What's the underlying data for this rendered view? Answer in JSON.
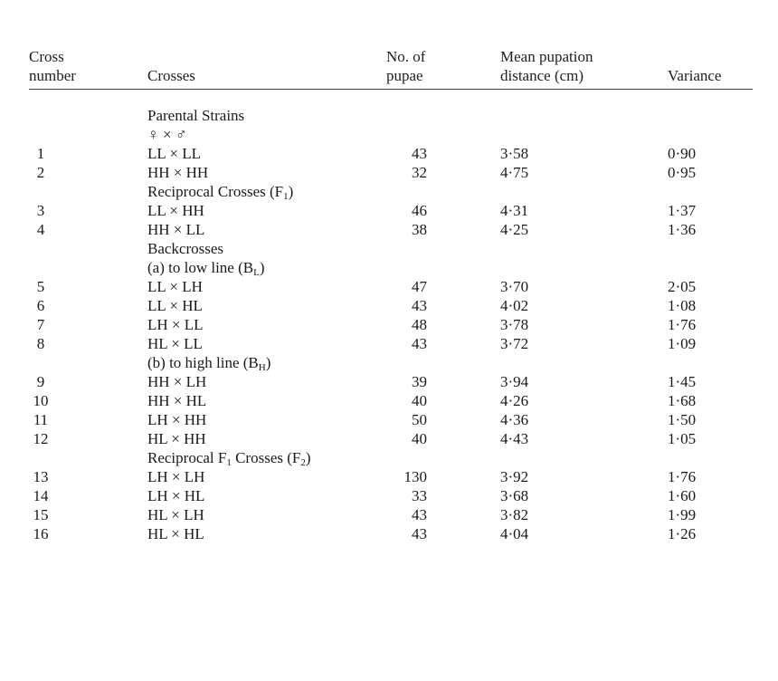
{
  "headers": {
    "cross_number_line1": "Cross",
    "cross_number_line2": "number",
    "crosses": "Crosses",
    "pupae_line1": "No. of",
    "pupae_line2": "pupae",
    "mean_line1": "Mean pupation",
    "mean_line2": "distance (cm)",
    "variance": "Variance"
  },
  "sections": {
    "parental": "Parental Strains",
    "sex_symbols": "♀ × ♂",
    "reciprocal_main": "Reciprocal Crosses (F",
    "reciprocal_sub": "1",
    "reciprocal_end": ")",
    "backcrosses": "Backcrosses",
    "low_main": "(a) to low line (B",
    "low_sub": "L",
    "low_end": ")",
    "high_main": "(b) to high line (B",
    "high_sub": "H",
    "high_end": ")",
    "f1_main": "Reciprocal F",
    "f1_sub": "1",
    "f1_mid": " Crosses (F",
    "f1_sub2": "2",
    "f1_end": ")"
  },
  "rows": [
    {
      "num": "1",
      "cross": "LL × LL",
      "pupae": "43",
      "mean": "3·58",
      "var": "0·90"
    },
    {
      "num": "2",
      "cross": "HH × HH",
      "pupae": "32",
      "mean": "4·75",
      "var": "0·95"
    },
    {
      "num": "3",
      "cross": "LL × HH",
      "pupae": "46",
      "mean": "4·31",
      "var": "1·37"
    },
    {
      "num": "4",
      "cross": "HH × LL",
      "pupae": "38",
      "mean": "4·25",
      "var": "1·36"
    },
    {
      "num": "5",
      "cross": "LL × LH",
      "pupae": "47",
      "mean": "3·70",
      "var": "2·05"
    },
    {
      "num": "6",
      "cross": "LL × HL",
      "pupae": "43",
      "mean": "4·02",
      "var": "1·08"
    },
    {
      "num": "7",
      "cross": "LH × LL",
      "pupae": "48",
      "mean": "3·78",
      "var": "1·76"
    },
    {
      "num": "8",
      "cross": "HL × LL",
      "pupae": "43",
      "mean": "3·72",
      "var": "1·09"
    },
    {
      "num": "9",
      "cross": "HH × LH",
      "pupae": "39",
      "mean": "3·94",
      "var": "1·45"
    },
    {
      "num": "10",
      "cross": "HH × HL",
      "pupae": "40",
      "mean": "4·26",
      "var": "1·68"
    },
    {
      "num": "11",
      "cross": "LH × HH",
      "pupae": "50",
      "mean": "4·36",
      "var": "1·50"
    },
    {
      "num": "12",
      "cross": "HL × HH",
      "pupae": "40",
      "mean": "4·43",
      "var": "1·05"
    },
    {
      "num": "13",
      "cross": "LH × LH",
      "pupae": "130",
      "mean": "3·92",
      "var": "1·76"
    },
    {
      "num": "14",
      "cross": "LH × HL",
      "pupae": "33",
      "mean": "3·68",
      "var": "1·60"
    },
    {
      "num": "15",
      "cross": "HL × LH",
      "pupae": "43",
      "mean": "3·82",
      "var": "1·99"
    },
    {
      "num": "16",
      "cross": "HL × HL",
      "pupae": "43",
      "mean": "4·04",
      "var": "1·26"
    }
  ]
}
